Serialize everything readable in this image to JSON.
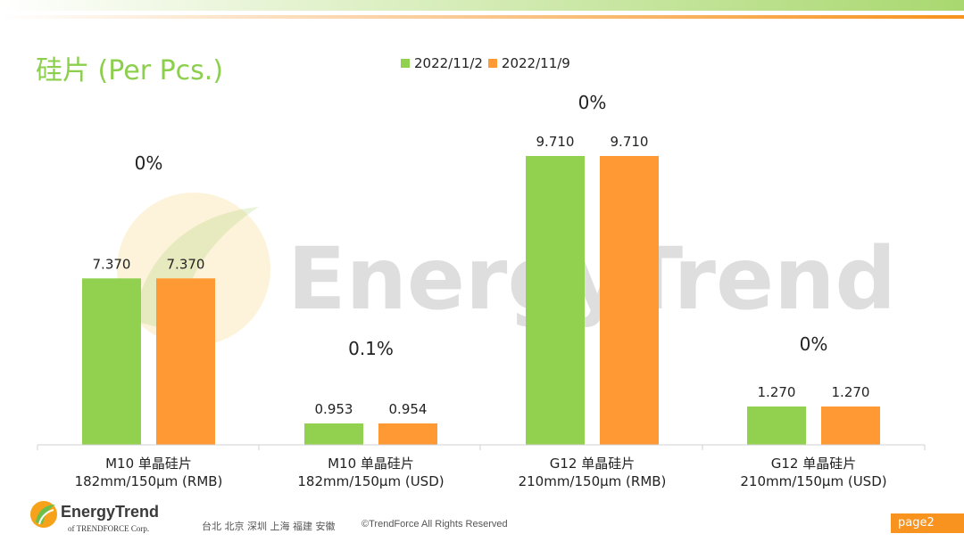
{
  "page": {
    "title": "硅片 (Per Pcs.)",
    "brand_name": "EnergyTrend",
    "brand_sub": "of TRENDFORCE Corp.",
    "watermark": "EnergyTrend",
    "footer_cities": "台北  北京  深圳  上海  福建  安徽",
    "footer_copyright": "©TrendForce All Rights Reserved",
    "page_label": "page2"
  },
  "colors": {
    "green": "#92d050",
    "orange": "#ff9933",
    "title_green": "#8ccf4d",
    "badge_orange": "#f7931e"
  },
  "chart_data": {
    "type": "bar",
    "title": "硅片 (Per Pcs.)",
    "legend_position": "top",
    "grid": false,
    "categories": [
      [
        "M10 单晶硅片",
        "182mm/150µm (RMB)"
      ],
      [
        "M10 单晶硅片",
        "182mm/150µm (USD)"
      ],
      [
        "G12 单晶硅片",
        "210mm/150µm  (RMB)"
      ],
      [
        "G12 单晶硅片",
        "210mm/150µm  (USD)"
      ]
    ],
    "series": [
      {
        "name": "2022/11/2",
        "color": "#92d050",
        "values": [
          7.37,
          0.953,
          9.71,
          1.27
        ],
        "labels": [
          "7.370",
          "0.953",
          "9.710",
          "1.270"
        ]
      },
      {
        "name": "2022/11/9",
        "color": "#ff9933",
        "values": [
          7.37,
          0.954,
          9.71,
          1.27
        ],
        "labels": [
          "7.370",
          "0.954",
          "9.710",
          "1.270"
        ]
      }
    ],
    "changes": [
      "0%",
      "0.1%",
      "0%",
      "0%"
    ],
    "panel_maxima": [
      9.71,
      1.27,
      9.71,
      1.27
    ]
  }
}
